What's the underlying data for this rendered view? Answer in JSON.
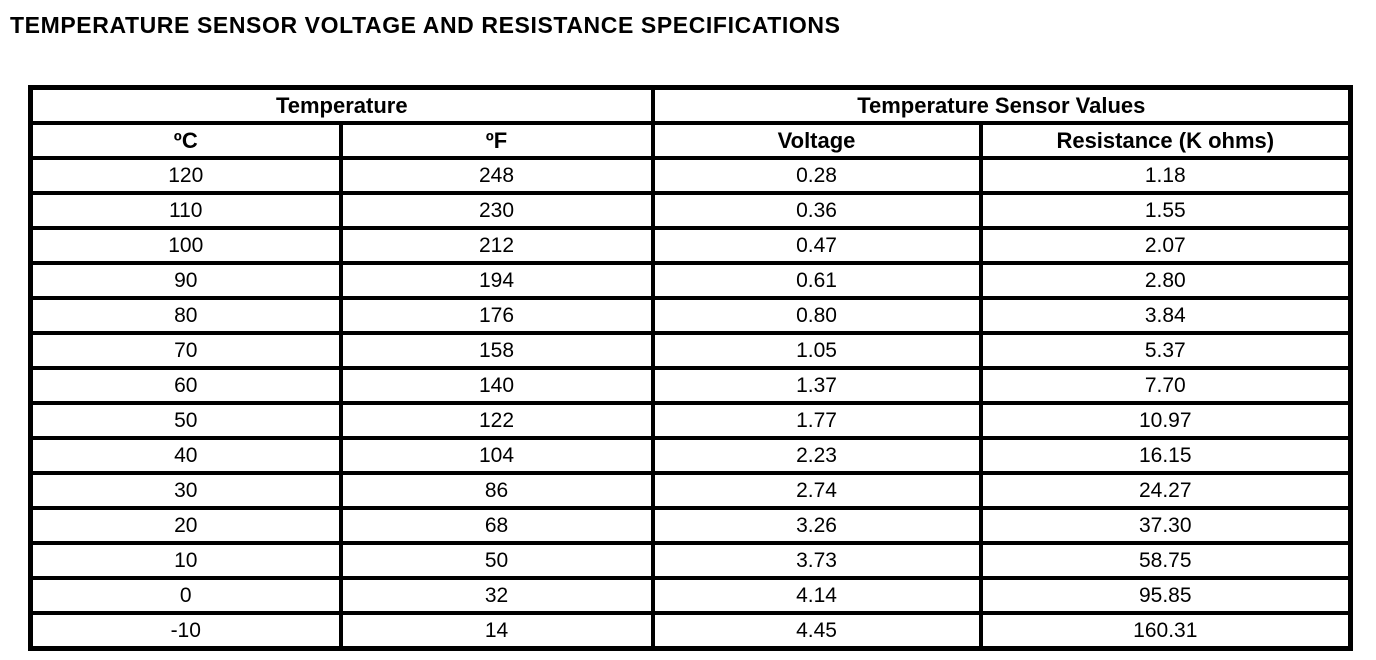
{
  "page": {
    "title": "TEMPERATURE SENSOR VOLTAGE AND RESISTANCE SPECIFICATIONS"
  },
  "table": {
    "group_headers": [
      {
        "label": "Temperature"
      },
      {
        "label": "Temperature Sensor Values"
      }
    ],
    "column_headers": [
      "ºC",
      "ºF",
      "Voltage",
      "Resistance (K ohms)"
    ],
    "rows": [
      [
        "120",
        "248",
        "0.28",
        "1.18"
      ],
      [
        "110",
        "230",
        "0.36",
        "1.55"
      ],
      [
        "100",
        "212",
        "0.47",
        "2.07"
      ],
      [
        "90",
        "194",
        "0.61",
        "2.80"
      ],
      [
        "80",
        "176",
        "0.80",
        "3.84"
      ],
      [
        "70",
        "158",
        "1.05",
        "5.37"
      ],
      [
        "60",
        "140",
        "1.37",
        "7.70"
      ],
      [
        "50",
        "122",
        "1.77",
        "10.97"
      ],
      [
        "40",
        "104",
        "2.23",
        "16.15"
      ],
      [
        "30",
        "86",
        "2.74",
        "24.27"
      ],
      [
        "20",
        "68",
        "3.26",
        "37.30"
      ],
      [
        "10",
        "50",
        "3.73",
        "58.75"
      ],
      [
        "0",
        "32",
        "4.14",
        "95.85"
      ],
      [
        "-10",
        "14",
        "4.45",
        "160.31"
      ]
    ]
  }
}
